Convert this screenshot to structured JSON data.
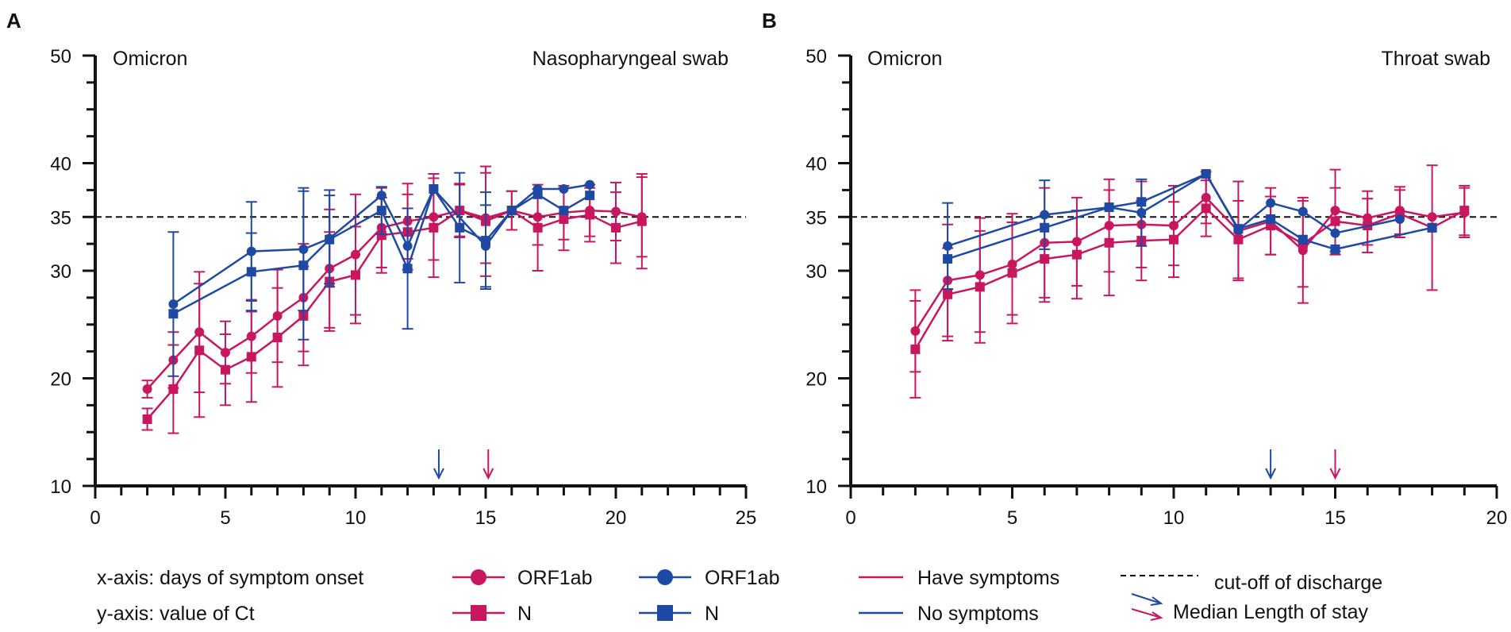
{
  "colors": {
    "symptoms": "#C8175F",
    "no_symptoms": "#1F4AA3",
    "axis": "#111111"
  },
  "legend": {
    "xaxis_note": "x-axis:  days of symptom onset",
    "yaxis_note": "y-axis:  value of Ct",
    "orf1ab_label": "ORF1ab",
    "orf1ab_label_blue": "ORF1ab",
    "n_label": "N",
    "n_label_blue": "N",
    "have_symptoms": "Have  symptoms",
    "no_symptoms": "No symptoms",
    "cutoff": "cut-off of discharge",
    "median_stay": "Median Length of stay"
  },
  "chart_data": [
    {
      "panel": "A",
      "type": "line",
      "title_left": "Omicron",
      "title_right": "Nasopharyngeal swab",
      "xlim": [
        0,
        25
      ],
      "ylim": [
        10,
        50
      ],
      "xticks": [
        0,
        5,
        10,
        15,
        20,
        25
      ],
      "yticks": [
        10,
        20,
        30,
        40,
        50
      ],
      "ytick_extra": [
        35
      ],
      "cutoff": 35,
      "median_arrows": [
        {
          "group": "no_symptoms",
          "x": 13.2
        },
        {
          "group": "symptoms",
          "x": 15.1
        }
      ],
      "series": [
        {
          "name": "ORF1ab - Have symptoms",
          "group": "symptoms",
          "marker": "circle",
          "x": [
            2,
            3,
            4,
            5,
            6,
            7,
            8,
            9,
            10,
            11,
            12,
            13,
            14,
            15,
            16,
            17,
            18,
            19,
            20,
            21
          ],
          "y": [
            19.0,
            21.7,
            24.3,
            22.4,
            23.9,
            25.8,
            27.5,
            30.2,
            31.5,
            34.0,
            34.6,
            35.0,
            35.6,
            34.9,
            35.6,
            35.0,
            35.4,
            35.6,
            35.5,
            35.0
          ],
          "err": [
            0.8,
            2.6,
            5.6,
            2.9,
            3.4,
            4.3,
            5.0,
            5.5,
            5.6,
            3.7,
            3.5,
            4.0,
            2.4,
            4.2,
            1.8,
            2.6,
            2.5,
            2.4,
            2.7,
            3.7
          ]
        },
        {
          "name": "N - Have symptoms",
          "group": "symptoms",
          "marker": "square",
          "x": [
            2,
            3,
            4,
            5,
            6,
            7,
            8,
            9,
            10,
            11,
            12,
            13,
            14,
            15,
            16,
            17,
            18,
            19,
            20,
            21
          ],
          "y": [
            16.2,
            19.0,
            22.6,
            20.8,
            22.0,
            23.8,
            25.8,
            29.0,
            29.6,
            33.3,
            33.6,
            34.0,
            35.6,
            34.6,
            35.6,
            34.0,
            34.8,
            35.2,
            34.0,
            34.6
          ],
          "err": [
            1.0,
            4.1,
            6.2,
            3.3,
            4.2,
            4.6,
            4.6,
            4.6,
            4.5,
            3.5,
            3.5,
            4.6,
            2.5,
            5.1,
            1.8,
            4.0,
            2.9,
            2.5,
            3.3,
            4.4
          ]
        },
        {
          "name": "ORF1ab - No symptoms",
          "group": "no_symptoms",
          "marker": "circle",
          "x": [
            3,
            6,
            8,
            9,
            11,
            12,
            13,
            15,
            16,
            17,
            18,
            19
          ],
          "y": [
            26.9,
            31.8,
            32.0,
            33.0,
            37.0,
            32.3,
            37.6,
            32.3,
            35.6,
            37.6,
            37.6,
            38.0
          ],
          "err": [
            6.7,
            4.6,
            5.7,
            4.5,
            0,
            0,
            0,
            3.8,
            0,
            0,
            0,
            0
          ]
        },
        {
          "name": "N - No symptoms",
          "group": "no_symptoms",
          "marker": "square",
          "x": [
            3,
            6,
            8,
            9,
            11,
            12,
            13,
            14,
            15,
            16,
            17,
            18,
            19
          ],
          "y": [
            26.0,
            29.9,
            30.5,
            32.9,
            35.6,
            30.2,
            37.6,
            34.0,
            32.8,
            35.6,
            37.1,
            35.6,
            37.0
          ],
          "err": [
            0,
            3.6,
            6.9,
            4.1,
            2.2,
            5.6,
            0,
            5.1,
            4.5,
            0,
            0,
            0,
            0
          ]
        }
      ]
    },
    {
      "panel": "B",
      "type": "line",
      "title_left": "Omicron",
      "title_right": "Throat swab",
      "xlim": [
        0,
        20
      ],
      "ylim": [
        10,
        50
      ],
      "xticks": [
        0,
        5,
        10,
        15,
        20
      ],
      "yticks": [
        10,
        20,
        30,
        40,
        50
      ],
      "ytick_extra": [
        35
      ],
      "cutoff": 35,
      "median_arrows": [
        {
          "group": "no_symptoms",
          "x": 13
        },
        {
          "group": "symptoms",
          "x": 15
        }
      ],
      "series": [
        {
          "name": "ORF1ab - Have symptoms",
          "group": "symptoms",
          "marker": "circle",
          "x": [
            2,
            3,
            4,
            5,
            6,
            7,
            8,
            9,
            10,
            11,
            12,
            13,
            14,
            15,
            16,
            17,
            18,
            19
          ],
          "y": [
            24.4,
            29.1,
            29.6,
            30.6,
            32.6,
            32.7,
            34.2,
            34.3,
            34.2,
            36.8,
            33.7,
            34.6,
            31.9,
            35.6,
            34.9,
            35.6,
            35.0,
            35.4
          ],
          "err": [
            3.8,
            5.2,
            5.3,
            4.7,
            5.1,
            4.1,
            4.3,
            4.0,
            3.7,
            2.4,
            4.6,
            3.1,
            4.9,
            3.8,
            2.5,
            2.2,
            0,
            2.3
          ]
        },
        {
          "name": "N - Have symptoms",
          "group": "symptoms",
          "marker": "square",
          "x": [
            2,
            3,
            4,
            5,
            6,
            7,
            8,
            9,
            10,
            11,
            12,
            13,
            14,
            15,
            16,
            17,
            18,
            19
          ],
          "y": [
            22.7,
            27.8,
            28.5,
            29.8,
            31.1,
            31.5,
            32.6,
            32.8,
            32.9,
            35.8,
            32.9,
            34.2,
            32.5,
            34.6,
            34.2,
            35.3,
            34.0,
            35.6
          ],
          "err": [
            4.5,
            4.3,
            5.2,
            4.7,
            4.0,
            4.1,
            4.9,
            3.7,
            3.5,
            2.6,
            3.6,
            2.7,
            4.0,
            3.1,
            2.5,
            2.2,
            5.8,
            2.3
          ]
        },
        {
          "name": "ORF1ab - No symptoms",
          "group": "no_symptoms",
          "marker": "circle",
          "x": [
            3,
            6,
            8,
            9,
            11,
            12,
            13,
            14,
            15,
            17
          ],
          "y": [
            32.3,
            35.2,
            35.9,
            35.4,
            39.0,
            33.8,
            36.3,
            35.5,
            33.5,
            34.8
          ],
          "err": [
            4.0,
            3.2,
            0,
            3.1,
            0,
            0,
            0,
            0,
            0,
            0
          ]
        },
        {
          "name": "N - No symptoms",
          "group": "no_symptoms",
          "marker": "square",
          "x": [
            3,
            6,
            8,
            9,
            11,
            12,
            13,
            14,
            15,
            18
          ],
          "y": [
            31.1,
            34.0,
            35.9,
            36.4,
            39.0,
            33.9,
            34.8,
            32.9,
            32.0,
            34.0
          ],
          "err": [
            0,
            0,
            0,
            0,
            0,
            0,
            0,
            0,
            0,
            0
          ]
        }
      ]
    }
  ]
}
